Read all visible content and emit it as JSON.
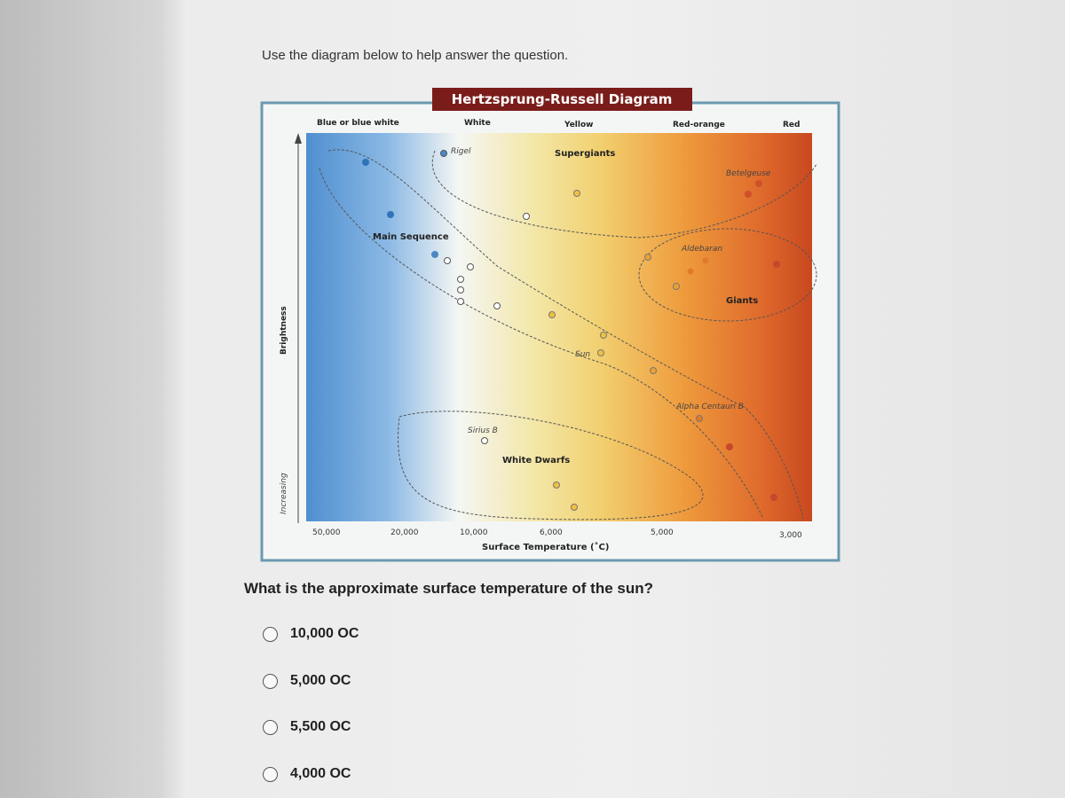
{
  "instruction": "Use the diagram below to help answer the question.",
  "diagram": {
    "title": "Hertzsprung-Russell Diagram",
    "color_labels": [
      "Blue or blue white",
      "White",
      "Yellow",
      "Red-orange",
      "Red"
    ],
    "regions": {
      "supergiants": "Supergiants",
      "main_sequence": "Main Sequence",
      "giants": "Giants",
      "white_dwarfs": "White Dwarfs"
    },
    "stars": {
      "rigel": "Rigel",
      "betelgeuse": "Betelgeuse",
      "aldebaran": "Aldebaran",
      "sun": "Sun",
      "alpha_centauri_b": "Alpha Centauri B",
      "sirius_b": "Sirius B"
    },
    "x_ticks": [
      "50,000",
      "20,000",
      "10,000",
      "6,000",
      "5,000",
      "3,000"
    ],
    "x_axis_label": "Surface Temperature (˚C)",
    "y_axis_label": "Brightness",
    "y_axis_sublabel": "Increasing"
  },
  "question": "What is the approximate surface temperature of the sun?",
  "options": [
    "10,000 OC",
    "5,000 OC",
    "5,500 OC",
    "4,000 OC"
  ]
}
